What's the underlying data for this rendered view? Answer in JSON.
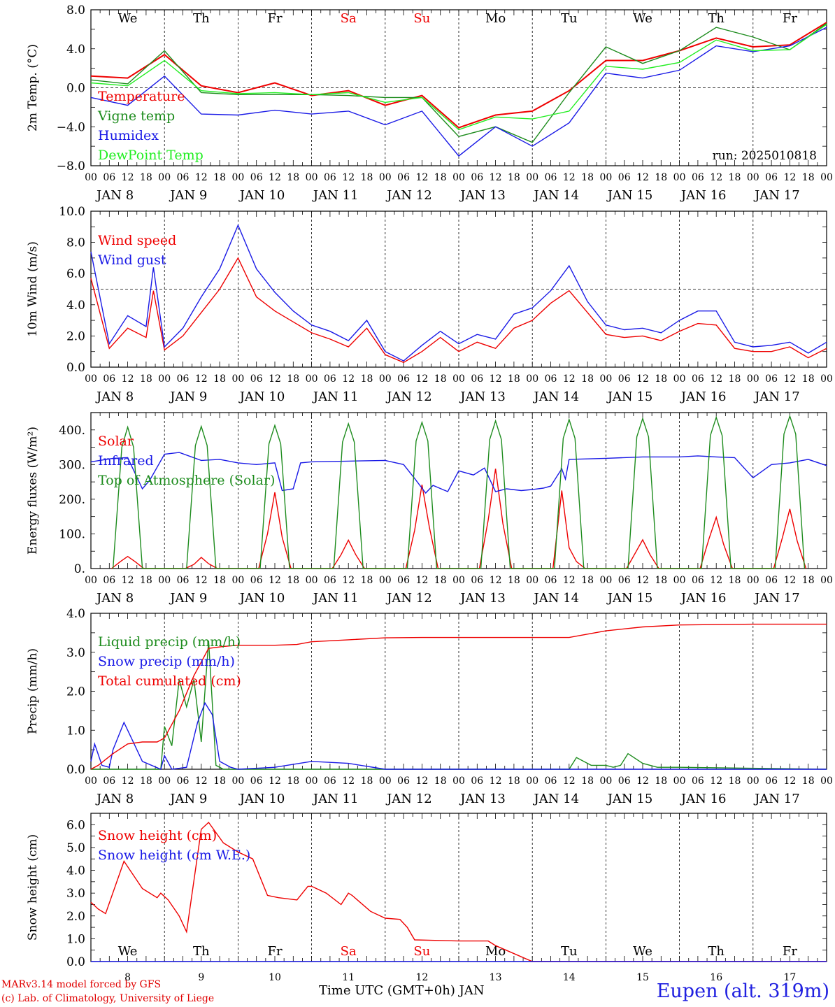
{
  "station": "Eupen (alt. 319m)",
  "credits": [
    "MARv3.14 model forced by GFS",
    "(c) Lab. of Climatology, University of Liege"
  ],
  "x_axis_title": "Time UTC (GMT+0h) JAN",
  "run_label": "run: 2025010818",
  "day_names": [
    "We",
    "Th",
    "Fr",
    "Sa",
    "Su",
    "Mo",
    "Tu",
    "We",
    "Th",
    "Fr"
  ],
  "weekend_days": [
    3,
    4
  ],
  "date_labels": [
    "JAN  8",
    "JAN  9",
    "JAN 10",
    "JAN 11",
    "JAN 12",
    "JAN 13",
    "JAN 14",
    "JAN 15",
    "JAN 16",
    "JAN 17"
  ],
  "bottom_date_numbers": [
    "8",
    "9",
    "10",
    "11",
    "12",
    "13",
    "14",
    "15",
    "16",
    "17"
  ],
  "hour_labels": [
    "00",
    "06",
    "12",
    "18"
  ],
  "colors": {
    "red": "#ee0000",
    "green": "#1e8c1e",
    "blue": "#1a1ae6",
    "light_green": "#22ee22"
  },
  "chart_data": [
    {
      "type": "line",
      "ylabel": "2m Temp. (°C)",
      "ylim": [
        -8,
        8
      ],
      "ytick_values": [
        -8,
        -4,
        0,
        4,
        8
      ],
      "ytick_labels": [
        "−8.0",
        "−4.0",
        "0.0",
        "4.0",
        "8.0"
      ],
      "ref_line": 0,
      "x_days": [
        0,
        0.5,
        1,
        1.5,
        2,
        2.5,
        3,
        3.5,
        4,
        4.5,
        5,
        5.5,
        6,
        6.5,
        7,
        7.5,
        8,
        8.5,
        9,
        9.5,
        10
      ],
      "series": [
        {
          "name": "Temperature",
          "color": "red",
          "values": [
            1.2,
            1.0,
            3.4,
            0.2,
            -0.5,
            0.5,
            -0.8,
            -0.3,
            -1.8,
            -0.8,
            -4.1,
            -2.8,
            -2.4,
            -0.3,
            2.8,
            2.8,
            3.8,
            5.1,
            4.2,
            4.4,
            6.7
          ]
        },
        {
          "name": "Vigne temp",
          "color": "green",
          "values": [
            0.8,
            0.4,
            3.8,
            -0.5,
            -0.7,
            -0.7,
            -0.7,
            -0.8,
            -1.0,
            -1.0,
            -5.0,
            -4.0,
            -5.6,
            -0.5,
            4.2,
            2.5,
            3.8,
            6.2,
            5.2,
            3.9,
            6.6
          ]
        },
        {
          "name": "Humidex",
          "color": "blue",
          "values": [
            -1.0,
            -1.8,
            1.2,
            -2.7,
            -2.8,
            -2.3,
            -2.7,
            -2.4,
            -3.8,
            -2.4,
            -7.0,
            -4.0,
            -6.0,
            -3.6,
            1.5,
            1.0,
            1.8,
            4.3,
            3.7,
            4.3,
            6.2
          ]
        },
        {
          "name": "DewPoint Temp",
          "color": "light_green",
          "values": [
            0.5,
            0.2,
            2.8,
            -0.3,
            -0.6,
            -0.5,
            -0.7,
            -0.5,
            -1.5,
            -1.0,
            -4.3,
            -3.0,
            -3.2,
            -2.4,
            2.2,
            1.9,
            2.6,
            4.9,
            3.8,
            3.9,
            6.5
          ]
        }
      ]
    },
    {
      "type": "line",
      "ylabel": "10m Wind (m/s)",
      "ylim": [
        0,
        10
      ],
      "ytick_values": [
        0,
        2,
        4,
        6,
        8,
        10
      ],
      "ytick_labels": [
        "0.0",
        "2.0",
        "4.0",
        "6.0",
        "8.0",
        "10.0"
      ],
      "ref_line": 5,
      "x_days": [
        0,
        0.25,
        0.5,
        0.75,
        0.85,
        1,
        1.25,
        1.5,
        1.75,
        2,
        2.25,
        2.5,
        2.75,
        3,
        3.25,
        3.5,
        3.75,
        4,
        4.25,
        4.5,
        4.75,
        5,
        5.25,
        5.5,
        5.75,
        6,
        6.25,
        6.5,
        6.75,
        7,
        7.25,
        7.5,
        7.75,
        8,
        8.25,
        8.5,
        8.75,
        9,
        9.25,
        9.5,
        9.75,
        10
      ],
      "series": [
        {
          "name": "Wind speed",
          "color": "red",
          "values": [
            5.7,
            1.2,
            2.5,
            1.9,
            4.9,
            1.1,
            2.0,
            3.5,
            5.0,
            7.0,
            4.5,
            3.6,
            2.9,
            2.2,
            1.8,
            1.3,
            2.5,
            0.8,
            0.3,
            1.0,
            1.9,
            1.0,
            1.6,
            1.2,
            2.5,
            3.0,
            4.1,
            4.9,
            3.5,
            2.1,
            1.9,
            2.0,
            1.7,
            2.3,
            2.8,
            2.7,
            1.2,
            1.0,
            1.0,
            1.3,
            0.6,
            1.2
          ]
        },
        {
          "name": "Wind gust",
          "color": "blue",
          "values": [
            7.4,
            1.5,
            3.3,
            2.6,
            6.4,
            1.3,
            2.5,
            4.5,
            6.3,
            9.1,
            6.3,
            4.8,
            3.6,
            2.7,
            2.3,
            1.7,
            3.0,
            1.0,
            0.4,
            1.4,
            2.3,
            1.5,
            2.1,
            1.8,
            3.4,
            3.8,
            4.9,
            6.5,
            4.2,
            2.7,
            2.4,
            2.5,
            2.2,
            3.0,
            3.6,
            3.6,
            1.6,
            1.3,
            1.4,
            1.6,
            0.9,
            1.6
          ]
        }
      ]
    },
    {
      "type": "line",
      "ylabel": "Energy fluxes (W/m²)",
      "ylim": [
        0,
        450
      ],
      "ytick_values": [
        0,
        100,
        200,
        300,
        400
      ],
      "ytick_labels": [
        "0.",
        "100.",
        "200.",
        "300.",
        "400."
      ],
      "series": [
        {
          "name": "Solar",
          "color": "red",
          "x_days": [
            0.28,
            0.4,
            0.5,
            0.6,
            0.72,
            1.28,
            1.4,
            1.5,
            1.6,
            1.72,
            2.28,
            2.4,
            2.5,
            2.6,
            2.72,
            3.28,
            3.4,
            3.5,
            3.6,
            3.72,
            4.28,
            4.4,
            4.5,
            4.6,
            4.72,
            5.28,
            5.4,
            5.5,
            5.6,
            5.72,
            6.28,
            6.4,
            6.5,
            6.6,
            6.72,
            7.28,
            7.4,
            7.5,
            7.6,
            7.72,
            8.28,
            8.4,
            8.5,
            8.6,
            8.72,
            9.28,
            9.4,
            9.5,
            9.6,
            9.72
          ],
          "values": [
            0,
            20,
            35,
            20,
            0,
            0,
            12,
            32,
            14,
            0,
            0,
            100,
            220,
            90,
            0,
            0,
            40,
            82,
            40,
            0,
            0,
            110,
            242,
            120,
            0,
            0,
            140,
            288,
            130,
            0,
            0,
            225,
            60,
            20,
            0,
            0,
            45,
            83,
            40,
            0,
            0,
            85,
            148,
            70,
            0,
            0,
            90,
            172,
            80,
            0
          ]
        },
        {
          "name": "Infrared",
          "color": "blue",
          "x_days": [
            0,
            0.3,
            0.5,
            0.7,
            0.8,
            1,
            1.2,
            1.5,
            1.75,
            2,
            2.25,
            2.5,
            2.6,
            2.75,
            2.85,
            3,
            3.5,
            4,
            4.25,
            4.4,
            4.55,
            4.65,
            4.85,
            5,
            5.2,
            5.35,
            5.5,
            5.65,
            5.85,
            6,
            6.15,
            6.25,
            6.4,
            6.45,
            6.5,
            7,
            7.5,
            8,
            8.25,
            8.5,
            8.75,
            9,
            9.25,
            9.5,
            9.75,
            10
          ],
          "values": [
            308,
            318,
            320,
            230,
            255,
            330,
            335,
            312,
            315,
            305,
            300,
            305,
            225,
            230,
            305,
            308,
            310,
            312,
            300,
            260,
            218,
            240,
            222,
            282,
            270,
            290,
            222,
            230,
            225,
            228,
            232,
            238,
            288,
            258,
            315,
            318,
            322,
            322,
            325,
            322,
            320,
            262,
            300,
            305,
            315,
            297
          ]
        },
        {
          "name": "Top of Atmosphere (Solar)",
          "color": "green",
          "x_days": [
            0.3,
            0.42,
            0.5,
            0.58,
            0.7,
            1.3,
            1.42,
            1.5,
            1.58,
            1.7,
            2.3,
            2.42,
            2.5,
            2.58,
            2.7,
            3.3,
            3.42,
            3.5,
            3.58,
            3.7,
            4.3,
            4.42,
            4.5,
            4.58,
            4.7,
            5.3,
            5.42,
            5.5,
            5.58,
            5.7,
            6.3,
            6.42,
            6.5,
            6.58,
            6.7,
            7.3,
            7.42,
            7.5,
            7.58,
            7.7,
            8.3,
            8.42,
            8.5,
            8.58,
            8.7,
            9.3,
            9.42,
            9.5,
            9.58,
            9.7
          ],
          "values": [
            0,
            350,
            408,
            350,
            0,
            0,
            355,
            410,
            355,
            0,
            0,
            360,
            413,
            360,
            0,
            0,
            365,
            418,
            365,
            0,
            0,
            368,
            422,
            368,
            0,
            0,
            372,
            426,
            372,
            0,
            0,
            376,
            430,
            376,
            0,
            0,
            380,
            433,
            380,
            0,
            0,
            384,
            436,
            384,
            0,
            0,
            388,
            440,
            388,
            0
          ]
        }
      ]
    },
    {
      "type": "line",
      "ylabel": "Precip (mm/h)",
      "ylim": [
        0,
        4
      ],
      "ytick_values": [
        0,
        1,
        2,
        3,
        4
      ],
      "ytick_labels": [
        "0.0",
        "1.0",
        "2.0",
        "3.0",
        "4.0"
      ],
      "series": [
        {
          "name": "Liquid precip (mm/h)",
          "color": "green",
          "x_days": [
            0,
            0.95,
            1,
            1.1,
            1.2,
            1.3,
            1.4,
            1.5,
            1.6,
            1.7,
            1.8,
            2,
            3,
            4,
            5,
            6,
            6.5,
            6.6,
            6.8,
            7,
            7.1,
            7.2,
            7.3,
            7.5,
            7.7,
            8,
            10
          ],
          "values": [
            0,
            0,
            1.1,
            0.6,
            2.3,
            1.6,
            2.3,
            0.7,
            3.3,
            0.1,
            0,
            0,
            0,
            0,
            0,
            0,
            0,
            0.3,
            0.1,
            0.1,
            0.05,
            0.1,
            0.4,
            0.15,
            0.05,
            0.05,
            0
          ]
        },
        {
          "name": "Snow precip (mm/h)",
          "color": "blue",
          "x_days": [
            0,
            0.05,
            0.15,
            0.25,
            0.3,
            0.45,
            0.55,
            0.7,
            0.95,
            1,
            1.1,
            1.3,
            1.45,
            1.55,
            1.65,
            1.75,
            1.9,
            2,
            2.5,
            3,
            3.5,
            4,
            6,
            10
          ],
          "values": [
            0.2,
            0.65,
            0.1,
            0.05,
            0.5,
            1.2,
            0.8,
            0.2,
            0,
            0.35,
            0,
            0.05,
            1.2,
            1.7,
            1.4,
            0.2,
            0.05,
            0,
            0.05,
            0.2,
            0.15,
            0,
            0,
            0
          ]
        },
        {
          "name": "Total cumulated (cm)",
          "color": "red",
          "x_days": [
            0,
            0.1,
            0.3,
            0.5,
            0.7,
            0.9,
            1,
            1.2,
            1.4,
            1.6,
            1.8,
            2,
            2.2,
            2.5,
            2.8,
            3,
            3.5,
            4,
            4.5,
            5,
            5.5,
            6,
            6.5,
            7,
            7.5,
            8,
            9,
            10
          ],
          "values": [
            0,
            0.1,
            0.4,
            0.65,
            0.7,
            0.7,
            0.8,
            1.5,
            2.4,
            3.1,
            3.15,
            3.18,
            3.18,
            3.18,
            3.2,
            3.27,
            3.32,
            3.37,
            3.38,
            3.38,
            3.38,
            3.38,
            3.38,
            3.55,
            3.65,
            3.7,
            3.72,
            3.72
          ]
        }
      ]
    },
    {
      "type": "line",
      "ylabel": "Snow height (cm)",
      "ylim": [
        0,
        6.5
      ],
      "ytick_values": [
        0,
        1,
        2,
        3,
        4,
        5,
        6
      ],
      "ytick_labels": [
        "0.0",
        "1.0",
        "2.0",
        "3.0",
        "4.0",
        "5.0",
        "6.0"
      ],
      "series": [
        {
          "name": "Snow height (cm)",
          "color": "red",
          "x_days": [
            0,
            0.1,
            0.2,
            0.45,
            0.7,
            0.9,
            0.95,
            1.05,
            1.2,
            1.3,
            1.5,
            1.6,
            1.8,
            2,
            2.2,
            2.4,
            2.55,
            2.8,
            2.95,
            3,
            3.2,
            3.4,
            3.5,
            3.55,
            3.8,
            4,
            4.2,
            4.3,
            4.4,
            5,
            5.4,
            5.5,
            6,
            7,
            8,
            10
          ],
          "values": [
            2.6,
            2.3,
            2.1,
            4.4,
            3.2,
            2.8,
            3.0,
            2.7,
            2.0,
            1.3,
            5.8,
            6.1,
            5.2,
            4.8,
            4.5,
            2.9,
            2.8,
            2.7,
            3.3,
            3.3,
            3.0,
            2.5,
            3.0,
            2.9,
            2.2,
            1.9,
            1.85,
            1.5,
            0.95,
            0.9,
            0.9,
            0.7,
            0,
            0,
            0,
            0
          ]
        },
        {
          "name": "Snow height (cm W.E.)",
          "color": "blue",
          "x_days": [
            0,
            10
          ],
          "values": [
            0,
            0
          ]
        }
      ]
    }
  ]
}
